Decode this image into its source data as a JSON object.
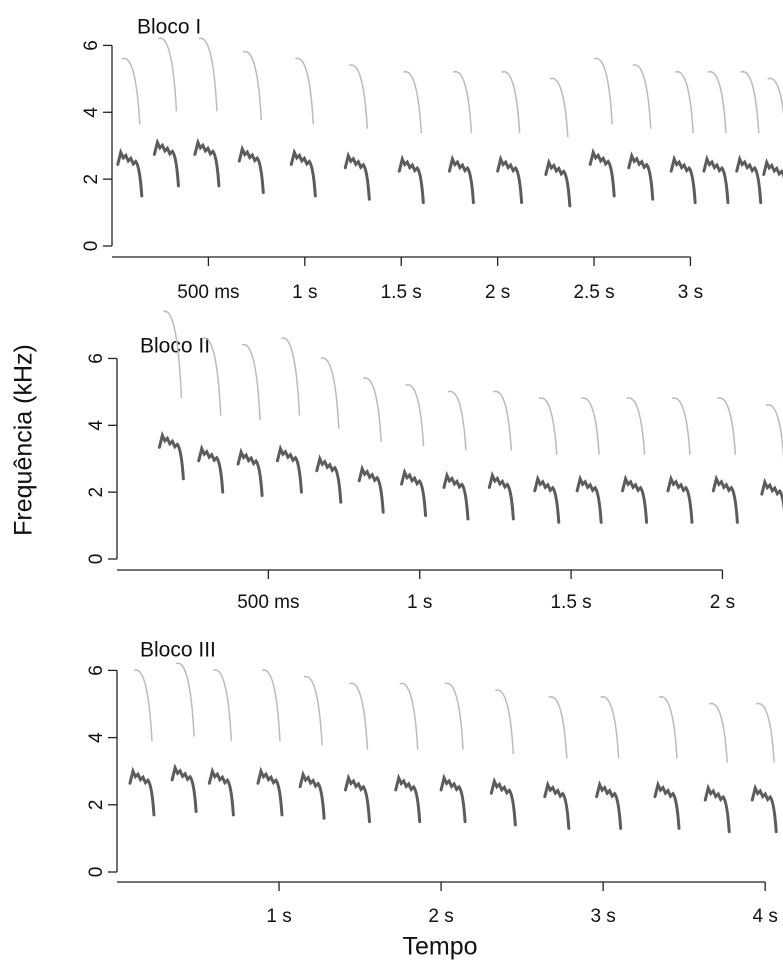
{
  "ylabel": "Frequência (kHz)",
  "xlabel": "Tempo",
  "chart_data": [
    {
      "type": "spectrogram",
      "title": "Bloco I",
      "xlim": [
        0,
        3.48
      ],
      "xticks": [
        {
          "value": 0.5,
          "label": "500 ms"
        },
        {
          "value": 1,
          "label": "1 s"
        },
        {
          "value": 1.5,
          "label": "1.5 s"
        },
        {
          "value": 2,
          "label": "2 s"
        },
        {
          "value": 2.5,
          "label": "2.5 s"
        },
        {
          "value": 3,
          "label": "3 s"
        }
      ],
      "ylim": [
        0,
        7
      ],
      "yticks": [
        0,
        2,
        4,
        6
      ],
      "onsets": [
        0.03,
        0.22,
        0.43,
        0.66,
        0.93,
        1.21,
        1.49,
        1.75,
        2.0,
        2.25,
        2.48,
        2.68,
        2.9,
        3.07,
        3.24,
        3.38
      ],
      "peaks": [
        2.8,
        3.1,
        3.1,
        2.9,
        2.8,
        2.7,
        2.6,
        2.6,
        2.6,
        2.5,
        2.8,
        2.7,
        2.6,
        2.6,
        2.6,
        2.5
      ]
    },
    {
      "type": "spectrogram",
      "title": "Bloco II",
      "xlim": [
        0,
        2.2
      ],
      "xticks": [
        {
          "value": 0.5,
          "label": "500 ms"
        },
        {
          "value": 1,
          "label": "1 s"
        },
        {
          "value": 1.5,
          "label": "1.5 s"
        },
        {
          "value": 2,
          "label": "2 s"
        }
      ],
      "ylim": [
        0,
        7.6
      ],
      "yticks": [
        0,
        2,
        4,
        6
      ],
      "onsets": [
        0.14,
        0.27,
        0.4,
        0.53,
        0.66,
        0.8,
        0.94,
        1.08,
        1.23,
        1.38,
        1.52,
        1.67,
        1.82,
        1.97,
        2.13
      ],
      "peaks": [
        3.7,
        3.3,
        3.2,
        3.3,
        3.0,
        2.7,
        2.6,
        2.5,
        2.5,
        2.4,
        2.4,
        2.4,
        2.4,
        2.4,
        2.3
      ]
    },
    {
      "type": "spectrogram",
      "title": "Bloco III",
      "xlim": [
        0,
        4.11
      ],
      "xticks": [
        {
          "value": 1,
          "label": "1 s"
        },
        {
          "value": 2,
          "label": "2 s"
        },
        {
          "value": 3,
          "label": "3 s"
        },
        {
          "value": 4,
          "label": "4 s"
        }
      ],
      "ylim": [
        0,
        7.5
      ],
      "yticks": [
        0,
        2,
        4,
        6
      ],
      "onsets": [
        0.08,
        0.34,
        0.57,
        0.87,
        1.13,
        1.41,
        1.72,
        2.0,
        2.31,
        2.64,
        2.96,
        3.32,
        3.63,
        3.92
      ],
      "peaks": [
        3.0,
        3.1,
        3.0,
        3.0,
        2.9,
        2.8,
        2.8,
        2.8,
        2.7,
        2.6,
        2.6,
        2.6,
        2.5,
        2.5
      ]
    }
  ]
}
